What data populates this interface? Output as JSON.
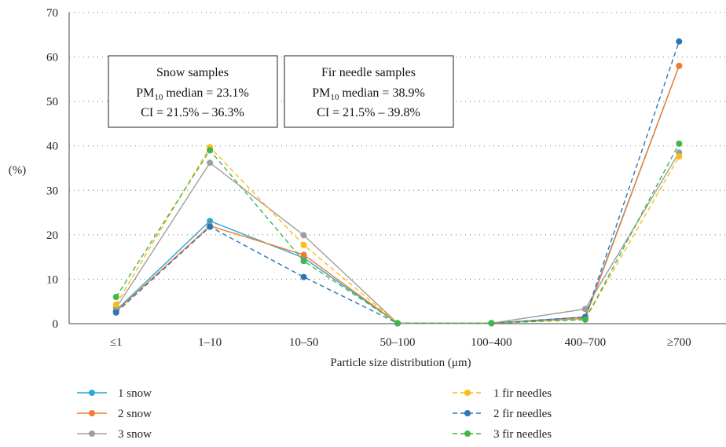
{
  "chart_data": {
    "type": "line",
    "xlabel": "Particle size distribution (μm)",
    "ylabel": "(%)",
    "ylim": [
      0,
      70
    ],
    "yticks": [
      0,
      10,
      20,
      30,
      40,
      50,
      60,
      70
    ],
    "grid": "horizontal dotted",
    "categories": [
      "≤1",
      "1–10",
      "10–50",
      "50–100",
      "100–400",
      "400–700",
      "≥700"
    ],
    "series": [
      {
        "name": "1 snow",
        "color": "#2aa7d8",
        "dash": "solid",
        "values": [
          3.0,
          23.1,
          14.8,
          0.1,
          0.1,
          1.5,
          58.0
        ]
      },
      {
        "name": "2 snow",
        "color": "#ee7d31",
        "dash": "solid",
        "values": [
          2.8,
          22.0,
          15.5,
          0.1,
          0.1,
          1.2,
          58.0
        ]
      },
      {
        "name": "3 snow",
        "color": "#9e9e9e",
        "dash": "solid",
        "values": [
          3.5,
          36.2,
          19.9,
          0.1,
          0.1,
          3.3,
          38.5
        ]
      },
      {
        "name": "1 fir needles",
        "color": "#fbbc16",
        "dash": "dashed",
        "values": [
          4.3,
          39.7,
          17.7,
          0.1,
          0.1,
          1.0,
          37.6
        ]
      },
      {
        "name": "2 fir needles",
        "color": "#2e75b6",
        "dash": "dashed",
        "values": [
          2.5,
          21.8,
          10.5,
          0.1,
          0.1,
          1.5,
          63.5
        ]
      },
      {
        "name": "3 fir needles",
        "color": "#41b649",
        "dash": "dashed",
        "values": [
          6.0,
          39.0,
          14.1,
          0.1,
          0.1,
          0.9,
          40.5
        ]
      }
    ],
    "annotations": [
      {
        "title": "Snow samples",
        "pm_prefix": "PM",
        "pm_sub": "10",
        "pm_suffix": " median = 23.1%",
        "ci": "CI = 21.5% – 36.3%"
      },
      {
        "title": "Fir needle samples",
        "pm_prefix": "PM",
        "pm_sub": "10",
        "pm_suffix": " median = 38.9%",
        "ci": "CI = 21.5% – 39.8%"
      }
    ],
    "legend_position": "bottom"
  }
}
